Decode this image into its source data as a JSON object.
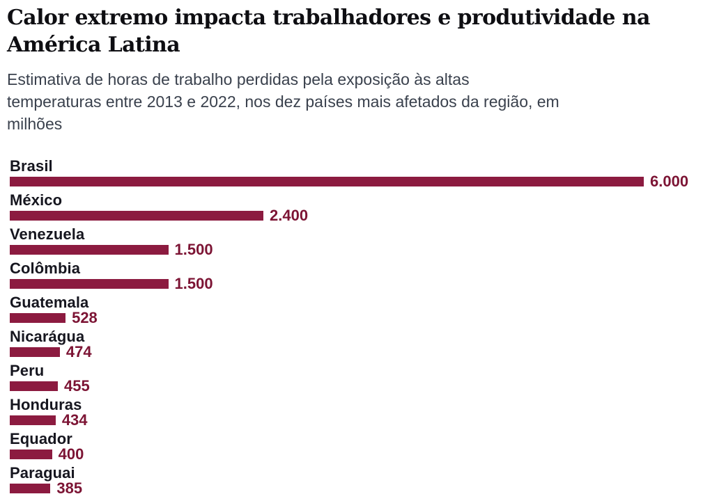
{
  "header": {
    "title": "Calor extremo impacta trabalhadores e produtividade na América Latina",
    "title_lines": [
      "Calor extremo impacta trabalhadores e produtividade na",
      "América Latina"
    ],
    "subtitle": "Estimativa de horas de trabalho perdidas pela exposição às altas temperaturas entre 2013 e 2022, nos dez países mais afetados da região, em milhões",
    "subtitle_lines": [
      "Estimativa de horas de trabalho perdidas pela exposição às altas",
      "temperaturas entre 2013 e 2022, nos dez países mais afetados da região, em",
      "milhões"
    ]
  },
  "chart_data": {
    "type": "bar",
    "orientation": "horizontal",
    "title": "Calor extremo impacta trabalhadores e produtividade na América Latina",
    "subtitle": "Estimativa de horas de trabalho perdidas pela exposição às altas temperaturas entre 2013 e 2022, nos dez países mais afetados da região, em milhões",
    "unit": "milhões de horas de trabalho perdidas",
    "categories": [
      "Brasil",
      "México",
      "Venezuela",
      "Colômbia",
      "Guatemala",
      "Nicarágua",
      "Peru",
      "Honduras",
      "Equador",
      "Paraguai"
    ],
    "values": [
      6000,
      2400,
      1500,
      1500,
      528,
      474,
      455,
      434,
      400,
      385
    ],
    "value_labels": [
      "6.000",
      "2.400",
      "1.500",
      "1.500",
      "528",
      "474",
      "455",
      "434",
      "400",
      "385"
    ],
    "xlim": [
      0,
      6000
    ],
    "grid": false,
    "legend": false,
    "axes_hidden": true,
    "colors": {
      "bar": "#8c1b40",
      "value_label": "#7c1434",
      "category_label": "#16161f",
      "title": "#0e0e12",
      "subtitle": "#3a414d",
      "background": "#ffffff"
    }
  }
}
